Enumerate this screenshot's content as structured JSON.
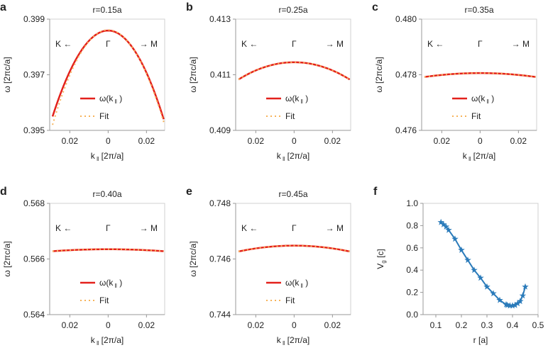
{
  "chart_data": [
    {
      "type": "line",
      "panel": "a",
      "title": "r=0.15a",
      "ylabel": "ω [2πc/a]",
      "xlabel": "k ‖ [2π/a]",
      "xticks": [
        "0.02",
        "0",
        "0.02"
      ],
      "xtick_values": [
        -0.02,
        0,
        0.02
      ],
      "yticks": [
        "0.395",
        "0.397",
        "0.399"
      ],
      "ylim": [
        0.395,
        0.399
      ],
      "xlim": [
        -0.0305,
        0.0295
      ],
      "annotations": {
        "left": "K ←",
        "center": "Γ",
        "right": "→ M"
      },
      "legend": [
        "ω(k ‖ )",
        "Fit"
      ],
      "series": [
        {
          "name": "ω(k ‖ )",
          "peak": 0.39859,
          "edge_left": 0.3955,
          "edge_right": 0.3954,
          "krange": [
            -0.029,
            0.029
          ]
        },
        {
          "name": "Fit",
          "peak": 0.39861,
          "edge_left": 0.3952,
          "edge_right": 0.3953,
          "krange": [
            -0.029,
            0.029
          ]
        }
      ]
    },
    {
      "type": "line",
      "panel": "b",
      "title": "r=0.25a",
      "ylabel": "ω [2πc/a]",
      "xlabel": "k ‖ [2π/a]",
      "xticks": [
        "0.02",
        "0",
        "0.02"
      ],
      "xtick_values": [
        -0.02,
        0,
        0.02
      ],
      "yticks": [
        "0.409",
        "0.411",
        "0.413"
      ],
      "ylim": [
        0.409,
        0.413
      ],
      "xlim": [
        -0.0305,
        0.0295
      ],
      "annotations": {
        "left": "K ←",
        "center": "Γ",
        "right": "→ M"
      },
      "legend": [
        "ω(k ‖ )",
        "Fit"
      ],
      "series": [
        {
          "name": "ω(k ‖ )",
          "peak": 0.41145,
          "edge_left": 0.41083,
          "edge_right": 0.41083,
          "krange": [
            -0.029,
            0.029
          ]
        },
        {
          "name": "Fit",
          "peak": 0.41145,
          "edge_left": 0.41083,
          "edge_right": 0.41083,
          "krange": [
            -0.029,
            0.029
          ]
        }
      ]
    },
    {
      "type": "line",
      "panel": "c",
      "title": "r=0.35a",
      "ylabel": "ω [2πc/a]",
      "xlabel": "k ‖ [2π/a]",
      "xticks": [
        "0.02",
        "0",
        "0.02"
      ],
      "xtick_values": [
        -0.02,
        0,
        0.02
      ],
      "yticks": [
        "0.476",
        "0.478",
        "0.480"
      ],
      "ylim": [
        0.476,
        0.48
      ],
      "xlim": [
        -0.0305,
        0.0295
      ],
      "annotations": {
        "left": "K ←",
        "center": "Γ",
        "right": "→ M"
      },
      "legend": [
        "ω(k ‖ )",
        "Fit"
      ],
      "series": [
        {
          "name": "ω(k ‖ )",
          "peak": 0.47806,
          "edge_left": 0.47792,
          "edge_right": 0.47792,
          "krange": [
            -0.029,
            0.029
          ]
        },
        {
          "name": "Fit",
          "peak": 0.47806,
          "edge_left": 0.47792,
          "edge_right": 0.47792,
          "krange": [
            -0.029,
            0.029
          ]
        }
      ]
    },
    {
      "type": "line",
      "panel": "d",
      "title": "r=0.40a",
      "ylabel": "ω [2πc/a]",
      "xlabel": "k ‖ [2π/a]",
      "xticks": [
        "0.02",
        "0",
        "0.02"
      ],
      "xtick_values": [
        -0.02,
        0,
        0.02
      ],
      "yticks": [
        "0.564",
        "0.566",
        "0.568"
      ],
      "ylim": [
        0.564,
        0.568
      ],
      "xlim": [
        -0.0305,
        0.0295
      ],
      "annotations": {
        "left": "K ←",
        "center": "Γ",
        "right": "→ M"
      },
      "legend": [
        "ω(k ‖ )",
        "Fit"
      ],
      "series": [
        {
          "name": "ω(k ‖ )",
          "peak": 0.56635,
          "edge_left": 0.56628,
          "edge_right": 0.56628,
          "krange": [
            -0.029,
            0.029
          ]
        },
        {
          "name": "Fit",
          "peak": 0.56635,
          "edge_left": 0.56628,
          "edge_right": 0.56628,
          "krange": [
            -0.029,
            0.029
          ]
        }
      ]
    },
    {
      "type": "line",
      "panel": "e",
      "title": "r=0.45a",
      "ylabel": "ω [2πc/a]",
      "xlabel": "k ‖ [2π/a]",
      "xticks": [
        "0.02",
        "0",
        "0.02"
      ],
      "xtick_values": [
        -0.02,
        0,
        0.02
      ],
      "yticks": [
        "0.744",
        "0.746",
        "0.748"
      ],
      "ylim": [
        0.744,
        0.748
      ],
      "xlim": [
        -0.0305,
        0.0295
      ],
      "annotations": {
        "left": "K ←",
        "center": "Γ",
        "right": "→ M"
      },
      "legend": [
        "ω(k ‖ )",
        "Fit"
      ],
      "series": [
        {
          "name": "ω(k ‖ )",
          "peak": 0.74648,
          "edge_left": 0.74627,
          "edge_right": 0.74627,
          "krange": [
            -0.029,
            0.029
          ]
        },
        {
          "name": "Fit",
          "peak": 0.74648,
          "edge_left": 0.74627,
          "edge_right": 0.74627,
          "krange": [
            -0.029,
            0.029
          ]
        }
      ]
    },
    {
      "type": "line",
      "panel": "f",
      "title": "",
      "ylabel": "V g [c]",
      "xlabel": "r [a]",
      "xticks": [
        "0.1",
        "0.2",
        "0.3",
        "0.4",
        "0.5"
      ],
      "xtick_values": [
        0.1,
        0.2,
        0.3,
        0.4,
        0.5
      ],
      "yticks": [
        "0.0",
        "0.2",
        "0.4",
        "0.6",
        "0.8",
        "1.0"
      ],
      "ylim": [
        0,
        1
      ],
      "xlim": [
        0.05,
        0.5
      ],
      "marker": "star",
      "x": [
        0.12,
        0.13,
        0.14,
        0.15,
        0.175,
        0.2,
        0.225,
        0.25,
        0.275,
        0.3,
        0.325,
        0.35,
        0.375,
        0.38,
        0.39,
        0.4,
        0.41,
        0.42,
        0.43,
        0.44,
        0.45
      ],
      "y": [
        0.83,
        0.81,
        0.79,
        0.76,
        0.68,
        0.58,
        0.49,
        0.4,
        0.33,
        0.25,
        0.19,
        0.13,
        0.09,
        0.085,
        0.08,
        0.08,
        0.085,
        0.1,
        0.12,
        0.17,
        0.25
      ]
    }
  ],
  "colors": {
    "band": "#e3211c",
    "fit": "#f7b35a",
    "vg": "#2b7bba",
    "axis": "#bbbbbb"
  }
}
